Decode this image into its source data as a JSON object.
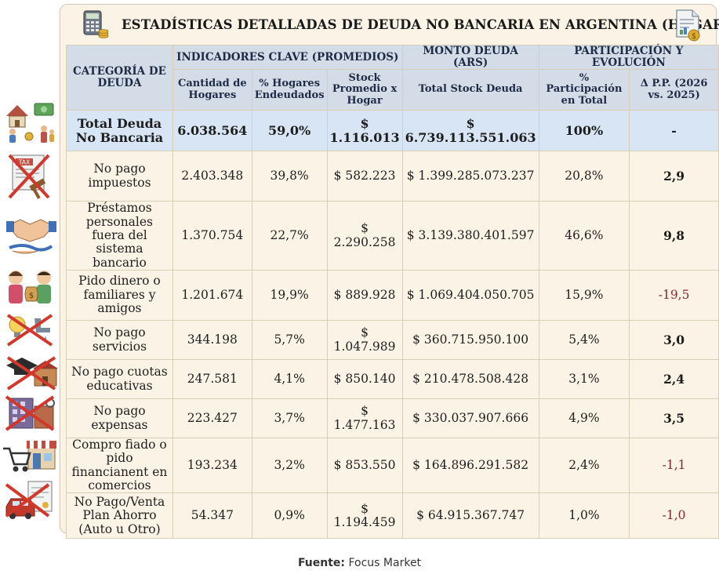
{
  "title": "ESTADÍSTICAS DETALLADAS DE DEUDA NO BANCARIA EN ARGENTINA (HOGARES)",
  "header": {
    "category": "CATEGORÍA DE DEUDA",
    "groups": [
      "INDICADORES CLAVE (PROMEDIOS)",
      "MONTO DEUDA (ARS)",
      "PARTICIPACIÓN Y EVOLUCIÓN"
    ],
    "columns": [
      "Cantidad de Hogares",
      "% Hogares Endeudados",
      "Stock Promedio x Hogar",
      "Total Stock Deuda",
      "% Participación en Total",
      "Δ P.P. (2026 vs. 2025)"
    ]
  },
  "rows": [
    {
      "category": "Total Deuda No Bancaria",
      "hogares": "6.038.564",
      "pct": "59,0%",
      "stock_prom": "$ 1.116.013",
      "total": "$ 6.739.113.551.063",
      "part": "100%",
      "delta": "-",
      "icon": "house-money-family-icon"
    },
    {
      "category": "No pago impuestos",
      "hogares": "2.403.348",
      "pct": "39,8%",
      "stock_prom": "$ 582.223",
      "total": "$ 1.399.285.073.237",
      "part": "20,8%",
      "delta": "2,9",
      "icon": "tax-crossed-icon"
    },
    {
      "category": "Préstamos personales fuera del sistema bancario",
      "hogares": "1.370.754",
      "pct": "22,7%",
      "stock_prom": "$ 2.290.258",
      "total": "$ 3.139.380.401.597",
      "part": "46,6%",
      "delta": "9,8",
      "icon": "handshake-icon"
    },
    {
      "category": "Pido dinero o familiares y amigos",
      "hogares": "1.201.674",
      "pct": "19,9%",
      "stock_prom": "$ 889.928",
      "total": "$ 1.069.404.050.705",
      "part": "15,9%",
      "delta": "-19,5",
      "icon": "people-money-bag-icon"
    },
    {
      "category": "No pago servicios",
      "hogares": "344.198",
      "pct": "5,7%",
      "stock_prom": "$ 1.047.989",
      "total": "$ 360.715.950.100",
      "part": "5,4%",
      "delta": "3,0",
      "icon": "utilities-crossed-icon"
    },
    {
      "category": "No pago cuotas educativas",
      "hogares": "247.581",
      "pct": "4,1%",
      "stock_prom": "$ 850.140",
      "total": "$ 210.478.508.428",
      "part": "3,1%",
      "delta": "2,4",
      "icon": "school-crossed-icon"
    },
    {
      "category": "No pago expensas",
      "hogares": "223.427",
      "pct": "3,7%",
      "stock_prom": "$ 1.477.163",
      "total": "$ 330.037.907.666",
      "part": "4,9%",
      "delta": "3,5",
      "icon": "building-crossed-icon"
    },
    {
      "category": "Compro fiado o pido financianent en comercios",
      "hogares": "193.234",
      "pct": "3,2%",
      "stock_prom": "$ 853.550",
      "total": "$ 164.896.291.582",
      "part": "2,4%",
      "delta": "-1,1",
      "icon": "cart-store-icon"
    },
    {
      "category": "No Pago/Venta Plan Ahorro (Auto u Otro)",
      "hogares": "54.347",
      "pct": "0,9%",
      "stock_prom": "$ 1.194.459",
      "total": "$ 64.915.367.747",
      "part": "1,0%",
      "delta": "-1,0",
      "icon": "car-document-crossed-icon"
    }
  ],
  "footer": {
    "label": "Fuente:",
    "source": "Focus Market"
  },
  "colors": {
    "header_bg": "#d4dce8",
    "total_bg": "#d7e5f4",
    "card_bg": "#fbf4e6",
    "negative": "#8b2432"
  }
}
